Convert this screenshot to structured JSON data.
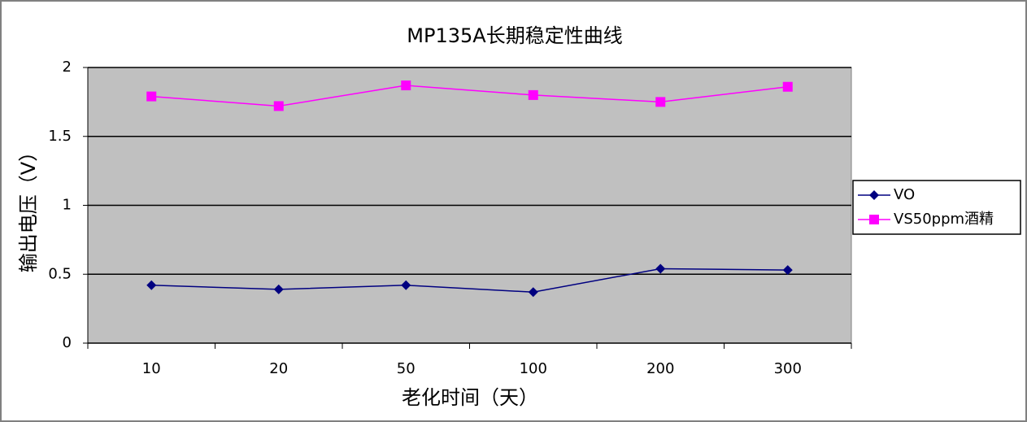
{
  "chart_data": {
    "type": "line",
    "title": "MP135A长期稳定性曲线",
    "x_label": "老化时间（天）",
    "y_label": "输出电压（V）",
    "categories": [
      "10",
      "20",
      "50",
      "100",
      "200",
      "300"
    ],
    "series": [
      {
        "name": "VO",
        "color": "#000080",
        "marker": "diamond",
        "values": [
          0.42,
          0.39,
          0.42,
          0.37,
          0.54,
          0.53
        ]
      },
      {
        "name": "VS50ppm酒精",
        "color": "#ff00ff",
        "marker": "square",
        "values": [
          1.79,
          1.72,
          1.87,
          1.8,
          1.75,
          1.86
        ]
      }
    ],
    "ylim": [
      0,
      2
    ],
    "yticks": [
      0,
      0.5,
      1,
      1.5,
      2
    ],
    "grid": true,
    "legend": "right"
  }
}
